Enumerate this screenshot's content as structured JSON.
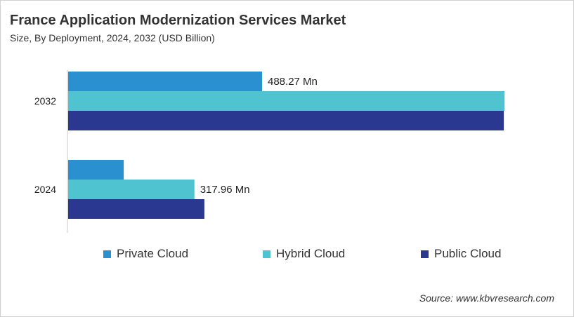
{
  "chart_data": {
    "type": "bar",
    "orientation": "horizontal",
    "title": "France Application Modernization Services Market",
    "subtitle": "Size, By Deployment, 2024, 2032 (USD Billion)",
    "categories": [
      "2032",
      "2024"
    ],
    "series": [
      {
        "name": "Private Cloud",
        "color": "#2b90cf",
        "values": [
          488.27,
          140
        ]
      },
      {
        "name": "Hybrid Cloud",
        "color": "#4fc3cf",
        "values": [
          1099,
          317.96
        ]
      },
      {
        "name": "Public Cloud",
        "color": "#2a388f",
        "values": [
          1097,
          343
        ]
      }
    ],
    "data_labels": [
      {
        "category": "2032",
        "series": "Private Cloud",
        "text": "488.27 Mn"
      },
      {
        "category": "2024",
        "series": "Hybrid Cloud",
        "text": "317.96 Mn"
      }
    ],
    "xlim": [
      0,
      1100
    ],
    "grid": false,
    "legend_position": "bottom",
    "source": "Source: www.kbvresearch.com"
  }
}
